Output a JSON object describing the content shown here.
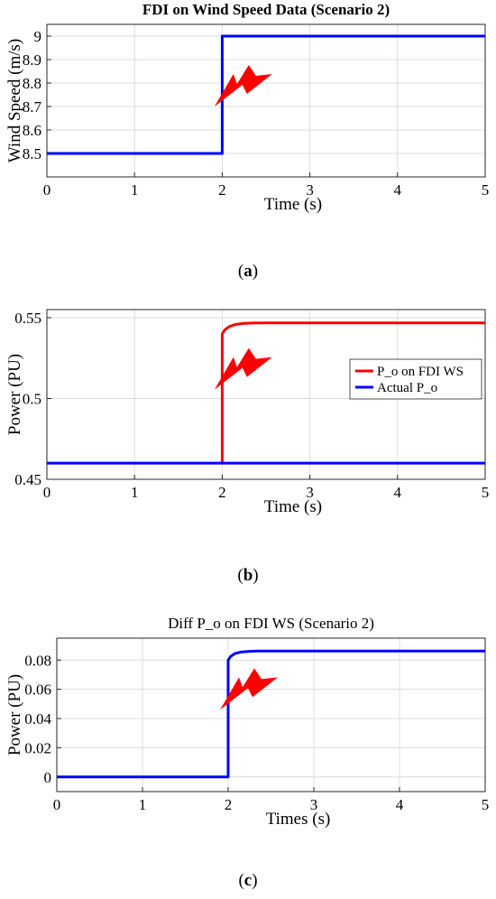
{
  "colors": {
    "blue": "#0000ff",
    "red": "#ff0000",
    "grid": "#dcdcdc",
    "axis": "#262626"
  },
  "icons": {
    "fdi_marker": "lightning-bolt-icon"
  },
  "chart_data": [
    {
      "type": "line",
      "title": "FDI on Wind Speed Data (Scenario 2)",
      "title_bold": true,
      "xlabel": "Time (s)",
      "ylabel": "Wind Speed (m/s)",
      "xlim": [
        0,
        5
      ],
      "ylim": [
        8.4,
        9.05
      ],
      "xticks": [
        "0",
        "1",
        "2",
        "3",
        "4",
        "5"
      ],
      "yticks": [
        "8.5",
        "8.6",
        "8.7",
        "8.8",
        "8.9",
        "9"
      ],
      "ytick_values": [
        8.5,
        8.6,
        8.7,
        8.8,
        8.9,
        9.0
      ],
      "grid": true,
      "series": [
        {
          "color": "#0000ff",
          "x": [
            0,
            2,
            2,
            5
          ],
          "y": [
            8.5,
            8.5,
            9.0,
            9.0
          ]
        }
      ],
      "marker": {
        "x": 2.2,
        "y": 8.8
      },
      "caption": "(a)"
    },
    {
      "type": "line",
      "title": "",
      "xlabel": "Time (s)",
      "ylabel": "Power (PU)",
      "xlim": [
        0,
        5
      ],
      "ylim": [
        0.45,
        0.555
      ],
      "xticks": [
        "0",
        "1",
        "2",
        "3",
        "4",
        "5"
      ],
      "yticks": [
        "0.45",
        "0.5",
        "0.55"
      ],
      "ytick_values": [
        0.45,
        0.5,
        0.55
      ],
      "grid": true,
      "legend_position": "middle-right",
      "series": [
        {
          "name": "P_o on FDI WS",
          "color": "#ff0000",
          "x": [
            2.0,
            2.0,
            2.03,
            2.08,
            2.15,
            2.25,
            2.35,
            2.5,
            3,
            4,
            5
          ],
          "y": [
            0.46,
            0.54,
            0.5425,
            0.5445,
            0.5458,
            0.5465,
            0.5467,
            0.5468,
            0.5468,
            0.5468,
            0.5468
          ]
        },
        {
          "name": "Actual P_o",
          "color": "#0000ff",
          "x": [
            0,
            5
          ],
          "y": [
            0.46,
            0.46
          ]
        }
      ],
      "marker": {
        "x": 2.2,
        "y": 0.52
      },
      "caption": "(b)"
    },
    {
      "type": "line",
      "title": "Diff P_o on FDI WS (Scenario 2)",
      "title_bold": false,
      "xlabel": "Times (s)",
      "ylabel": "Power (PU)",
      "xlim": [
        0,
        5
      ],
      "ylim": [
        -0.01,
        0.095
      ],
      "xticks": [
        "0",
        "1",
        "2",
        "3",
        "4",
        "5"
      ],
      "yticks": [
        "0",
        "0.02",
        "0.04",
        "0.06",
        "0.08"
      ],
      "ytick_values": [
        0,
        0.02,
        0.04,
        0.06,
        0.08
      ],
      "grid": true,
      "series": [
        {
          "color": "#0000ff",
          "x": [
            0,
            2.0,
            2.0,
            2.03,
            2.08,
            2.15,
            2.25,
            2.35,
            2.5,
            3,
            4,
            5
          ],
          "y": [
            0,
            0,
            0.08,
            0.0825,
            0.0845,
            0.0855,
            0.086,
            0.0862,
            0.0862,
            0.0862,
            0.0862,
            0.0862
          ]
        }
      ],
      "marker": {
        "x": 2.2,
        "y": 0.062
      },
      "caption": "(c)"
    }
  ]
}
